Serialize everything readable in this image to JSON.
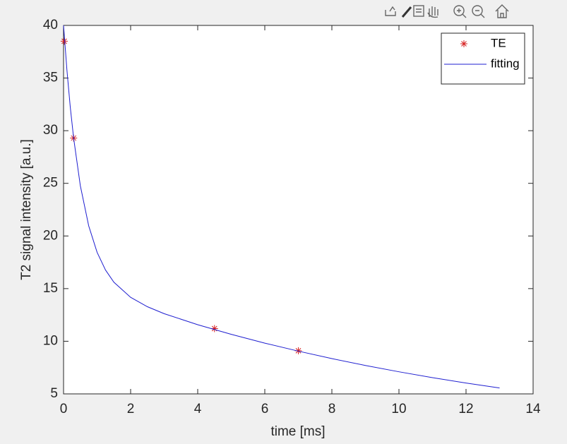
{
  "chart_data": {
    "type": "line",
    "xlabel": "time [ms]",
    "ylabel": "T2 signal intensity [a.u.]",
    "xlim": [
      0,
      14
    ],
    "xticks": [
      0,
      2,
      4,
      6,
      8,
      10,
      12,
      14
    ],
    "ylim": [
      5,
      40
    ],
    "yticks": [
      5,
      10,
      15,
      20,
      25,
      30,
      35,
      40
    ],
    "grid": false,
    "legend": "northeast",
    "series": [
      {
        "name": "TE",
        "color": "#d62020",
        "style": "marker",
        "x": [
          0.02,
          0.3,
          4.5,
          7
        ],
        "values": [
          38.5,
          29.3,
          11.2,
          9.1
        ]
      },
      {
        "name": "fitting",
        "color": "#1f1fd0",
        "style": "line",
        "x": [
          0,
          0.1,
          0.2,
          0.3,
          0.5,
          0.75,
          1,
          1.25,
          1.5,
          2,
          2.5,
          3,
          4,
          5,
          6,
          7,
          8,
          9,
          10,
          11,
          12,
          13
        ],
        "values": [
          40,
          35.78,
          32.25,
          29.31,
          24.78,
          20.96,
          18.45,
          16.77,
          15.61,
          14.17,
          13.28,
          12.62,
          11.57,
          10.66,
          9.82,
          9.06,
          8.35,
          7.7,
          7.1,
          6.54,
          6.03,
          5.56
        ]
      }
    ]
  }
}
